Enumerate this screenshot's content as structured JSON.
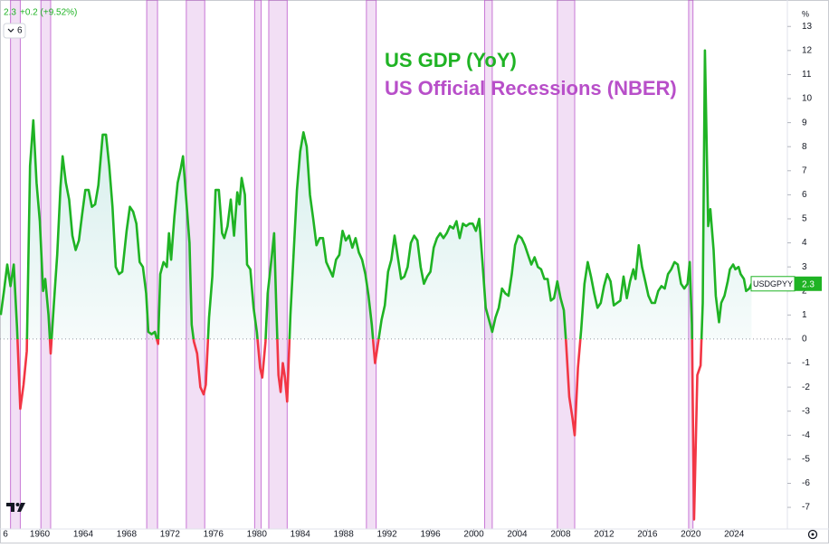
{
  "header": {
    "last": "2.3",
    "change": "+0.2 (+9.52%)",
    "interval": "6"
  },
  "chart_data": {
    "type": "line",
    "y_axis_label": "%",
    "xlim": [
      1956.33,
      2028.9
    ],
    "ylim": [
      -7.9,
      14.1
    ],
    "xticks": [
      {
        "value": 1956,
        "label": "6"
      },
      1960,
      1964,
      1968,
      1972,
      1976,
      1980,
      1984,
      1988,
      1992,
      1996,
      2000,
      2004,
      2008,
      2012,
      2016,
      2020,
      2024
    ],
    "yticks": [
      -7,
      -6,
      -5,
      -4,
      -3,
      -2,
      -1,
      0,
      1,
      2,
      3,
      4,
      5,
      6,
      7,
      8,
      9,
      10,
      11,
      12,
      13
    ],
    "zero_line": true,
    "area_fill": "#26a69a",
    "legend": "top-center",
    "price_tag": {
      "symbol": "USDGPYY",
      "value": 2.3,
      "value_label": "2.3"
    },
    "series": [
      {
        "name": "US GDP (YoY)",
        "color": "#1fb324",
        "negative_color": "#f23645",
        "x": [
          1956.4,
          1956.7,
          1957.0,
          1957.3,
          1957.6,
          1957.9,
          1958.2,
          1958.5,
          1958.8,
          1959.1,
          1959.4,
          1959.7,
          1960.0,
          1960.3,
          1960.5,
          1960.8,
          1961.0,
          1961.3,
          1961.6,
          1961.9,
          1962.1,
          1962.4,
          1962.7,
          1963.0,
          1963.3,
          1963.6,
          1963.9,
          1964.2,
          1964.5,
          1964.8,
          1965.1,
          1965.4,
          1965.8,
          1966.1,
          1966.4,
          1966.7,
          1967.0,
          1967.3,
          1967.6,
          1968.0,
          1968.3,
          1968.6,
          1968.9,
          1969.2,
          1969.5,
          1969.8,
          1970.0,
          1970.3,
          1970.6,
          1970.9,
          1971.1,
          1971.4,
          1971.7,
          1971.9,
          1972.1,
          1972.4,
          1972.7,
          1973.0,
          1973.2,
          1973.5,
          1973.8,
          1974.0,
          1974.2,
          1974.5,
          1974.8,
          1975.1,
          1975.3,
          1975.6,
          1975.9,
          1976.2,
          1976.5,
          1976.8,
          1977.0,
          1977.3,
          1977.6,
          1977.9,
          1978.2,
          1978.4,
          1978.6,
          1978.9,
          1979.1,
          1979.4,
          1979.7,
          1980.0,
          1980.3,
          1980.5,
          1980.8,
          1981.0,
          1981.4,
          1981.6,
          1981.8,
          1982.0,
          1982.2,
          1982.4,
          1982.6,
          1982.8,
          1983.1,
          1983.4,
          1983.7,
          1984.0,
          1984.3,
          1984.6,
          1984.9,
          1985.2,
          1985.5,
          1985.8,
          1986.1,
          1986.4,
          1986.7,
          1987.0,
          1987.3,
          1987.6,
          1987.9,
          1988.2,
          1988.5,
          1988.8,
          1989.1,
          1989.4,
          1989.7,
          1990.0,
          1990.3,
          1990.6,
          1990.9,
          1991.2,
          1991.5,
          1991.8,
          1992.1,
          1992.4,
          1992.7,
          1993.0,
          1993.3,
          1993.6,
          1993.9,
          1994.2,
          1994.5,
          1994.8,
          1995.1,
          1995.4,
          1995.7,
          1996.0,
          1996.3,
          1996.6,
          1996.9,
          1997.2,
          1997.5,
          1997.8,
          1998.1,
          1998.4,
          1998.7,
          1999.0,
          1999.3,
          1999.6,
          1999.9,
          2000.2,
          2000.5,
          2000.8,
          2001.1,
          2001.4,
          2001.7,
          2002.0,
          2002.3,
          2002.6,
          2002.9,
          2003.2,
          2003.5,
          2003.8,
          2004.1,
          2004.4,
          2004.7,
          2005.0,
          2005.3,
          2005.6,
          2005.9,
          2006.2,
          2006.5,
          2006.8,
          2007.1,
          2007.4,
          2007.7,
          2008.0,
          2008.3,
          2008.5,
          2008.8,
          2009.1,
          2009.3,
          2009.6,
          2009.9,
          2010.2,
          2010.5,
          2010.8,
          2011.1,
          2011.4,
          2011.7,
          2012.0,
          2012.3,
          2012.6,
          2012.9,
          2013.2,
          2013.5,
          2013.8,
          2014.1,
          2014.4,
          2014.7,
          2014.9,
          2015.2,
          2015.5,
          2015.8,
          2016.1,
          2016.4,
          2016.7,
          2017.0,
          2017.3,
          2017.6,
          2017.9,
          2018.2,
          2018.5,
          2018.8,
          2019.1,
          2019.4,
          2019.7,
          2019.9,
          2020.1,
          2020.3,
          2020.6,
          2020.9,
          2021.1,
          2021.3,
          2021.6,
          2021.8,
          2022.1,
          2022.3,
          2022.6,
          2022.8,
          2023.1,
          2023.4,
          2023.6,
          2023.9,
          2024.1,
          2024.4,
          2024.6,
          2024.9,
          2025.1,
          2025.4,
          2025.6
        ],
        "values": [
          1.0,
          2.0,
          3.1,
          2.2,
          3.1,
          0.5,
          -2.9,
          -1.9,
          -0.5,
          7.2,
          9.1,
          6.5,
          4.9,
          2.0,
          2.5,
          1.0,
          -0.6,
          1.5,
          3.5,
          6.3,
          7.6,
          6.5,
          5.8,
          4.3,
          3.7,
          4.1,
          5.2,
          6.2,
          6.2,
          5.5,
          5.6,
          6.4,
          8.5,
          8.5,
          7.2,
          5.5,
          3.0,
          2.7,
          2.8,
          4.5,
          5.5,
          5.3,
          4.8,
          3.2,
          3.0,
          1.9,
          0.3,
          0.2,
          0.3,
          -0.2,
          2.7,
          3.2,
          3.0,
          4.4,
          3.3,
          5.1,
          6.5,
          7.1,
          7.6,
          5.8,
          4.0,
          0.6,
          -0.1,
          -0.6,
          -2.0,
          -2.3,
          -1.9,
          0.9,
          2.6,
          6.2,
          6.2,
          4.4,
          4.2,
          4.7,
          5.8,
          4.3,
          6.1,
          5.6,
          6.7,
          6.0,
          3.1,
          2.9,
          1.3,
          0.3,
          -1.2,
          -1.6,
          -0.1,
          1.9,
          3.5,
          4.4,
          1.3,
          -1.5,
          -2.2,
          -1.0,
          -1.6,
          -2.6,
          1.0,
          3.6,
          6.2,
          7.8,
          8.6,
          8.0,
          6.0,
          5.0,
          3.9,
          4.2,
          4.2,
          3.2,
          2.9,
          2.6,
          3.3,
          3.5,
          4.5,
          4.1,
          4.3,
          3.8,
          4.2,
          3.6,
          3.3,
          2.7,
          1.8,
          0.6,
          -1.0,
          -0.1,
          0.8,
          1.4,
          2.8,
          3.3,
          4.3,
          3.4,
          2.5,
          2.6,
          3.0,
          4.0,
          4.3,
          4.1,
          3.0,
          2.3,
          2.6,
          2.8,
          3.8,
          4.2,
          4.4,
          4.2,
          4.4,
          4.7,
          4.6,
          4.9,
          4.2,
          4.8,
          4.7,
          4.8,
          4.8,
          4.5,
          5.0,
          3.2,
          1.3,
          0.8,
          0.3,
          0.9,
          1.3,
          2.1,
          1.9,
          1.8,
          2.7,
          3.9,
          4.3,
          4.2,
          3.9,
          3.5,
          3.1,
          3.4,
          3.0,
          2.9,
          2.5,
          2.5,
          1.6,
          1.7,
          2.4,
          1.7,
          1.2,
          -0.1,
          -2.4,
          -3.3,
          -4.0,
          -1.2,
          0.4,
          2.3,
          3.2,
          2.6,
          1.9,
          1.3,
          1.5,
          2.2,
          2.7,
          2.4,
          1.4,
          1.5,
          1.6,
          2.6,
          1.7,
          2.4,
          2.9,
          2.5,
          3.9,
          3.0,
          2.4,
          1.8,
          1.5,
          1.5,
          2.0,
          2.2,
          2.1,
          2.7,
          2.9,
          3.2,
          3.1,
          2.3,
          2.1,
          2.3,
          3.2,
          0.6,
          -7.5,
          -1.5,
          -1.1,
          1.5,
          12.0,
          4.7,
          5.4,
          3.7,
          1.8,
          0.7,
          1.5,
          1.8,
          2.4,
          2.9,
          3.1,
          2.9,
          3.0,
          2.7,
          2.5,
          2.0,
          2.1,
          2.3
        ]
      },
      {
        "name": "US Official Recessions (NBER)",
        "color": "#b84fc9",
        "type": "band",
        "start": [
          1957.3,
          1960.1,
          1969.85,
          1973.5,
          1979.8,
          1981.1,
          1990.1,
          2001.0,
          2007.7,
          2019.8
        ],
        "end": [
          1958.2,
          1961.0,
          1970.85,
          1975.2,
          1980.4,
          1982.8,
          1991.0,
          2001.7,
          2009.3,
          2020.2
        ]
      }
    ]
  }
}
